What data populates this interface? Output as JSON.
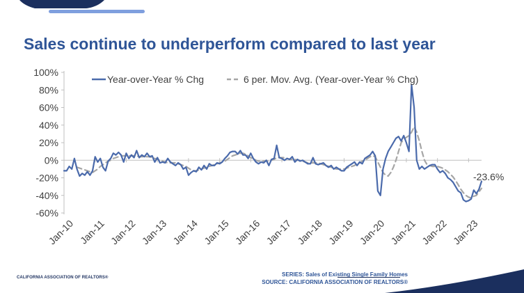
{
  "page": {
    "title": "Sales continue to underperform compared to last year",
    "org_label": "CALIFORNIA ASSOCIATION OF REALTORS®",
    "series_note": "SERIES: Sales of Existing Single Family Homes",
    "source_note": "SOURCE: CALIFORNIA ASSOCIATION OF REALTORS®"
  },
  "colors": {
    "title": "#2f5597",
    "navy": "#1b2f5e",
    "accent_bar": "#7f9fde",
    "series_yoy": "#4a6aab",
    "series_mavg": "#a6a6a6",
    "footer_text": "#2f5597"
  },
  "chart_data": {
    "type": "line",
    "title": "Sales continue to underperform compared to last year",
    "xlabel": "",
    "ylabel": "",
    "ylim": [
      -60,
      100
    ],
    "y_ticks": [
      100,
      80,
      60,
      40,
      20,
      0,
      -20,
      -40,
      -60
    ],
    "y_tick_labels": [
      "100%",
      "80%",
      "60%",
      "40%",
      "20%",
      "0%",
      "-20%",
      "-40%",
      "-60%"
    ],
    "x_tick_labels": [
      "Jan-10",
      "Jan-11",
      "Jan-12",
      "Jan-13",
      "Jan-14",
      "Jan-15",
      "Jan-16",
      "Jan-17",
      "Jan-18",
      "Jan-19",
      "Jan-20",
      "Jan-21",
      "Jan-22",
      "Jan-23"
    ],
    "grid": false,
    "legend_position": "top",
    "x_start": "Jan-10",
    "frequency": "monthly",
    "annotation": "-23.6%",
    "series": [
      {
        "name": "Year-over-Year % Chg",
        "style": "solid",
        "values": [
          -12,
          -12,
          -7,
          -10,
          2,
          -10,
          -18,
          -15,
          -17,
          -13,
          -17,
          -12,
          4,
          -2,
          2,
          -8,
          -12,
          -1,
          2,
          8,
          6,
          9,
          6,
          -2,
          8,
          2,
          6,
          3,
          11,
          3,
          6,
          4,
          8,
          4,
          5,
          -2,
          3,
          -3,
          -2,
          -3,
          2,
          -2,
          -4,
          -6,
          -3,
          -5,
          -10,
          -8,
          -17,
          -14,
          -12,
          -13,
          -8,
          -11,
          -6,
          -10,
          -4,
          -6,
          -6,
          -3,
          -4,
          -2,
          2,
          5,
          9,
          10,
          10,
          7,
          11,
          6,
          6,
          2,
          8,
          2,
          -2,
          -4,
          -2,
          -3,
          0,
          -6,
          1,
          2,
          17,
          3,
          2,
          0,
          2,
          1,
          4,
          -2,
          1,
          -1,
          0,
          -2,
          -4,
          -4,
          3,
          -4,
          -5,
          -4,
          -3,
          -6,
          -8,
          -6,
          -10,
          -8,
          -10,
          -12,
          -12,
          -8,
          -6,
          -4,
          -2,
          -6,
          -2,
          -4,
          2,
          4,
          6,
          10,
          5,
          -35,
          -40,
          -10,
          2,
          10,
          15,
          20,
          25,
          27,
          22,
          28,
          20,
          10,
          86,
          60,
          0,
          -10,
          -7,
          -10,
          -8,
          -6,
          -5,
          -5,
          -10,
          -14,
          -12,
          -15,
          -20,
          -22,
          -25,
          -30,
          -35,
          -37,
          -45,
          -47,
          -46,
          -44,
          -34,
          -38,
          -33,
          -24
        ]
      },
      {
        "name": "6 per. Mov. Avg. (Year-over-Year % Chg)",
        "style": "dashed",
        "values": [
          null,
          null,
          null,
          null,
          null,
          -8,
          -9,
          -10,
          -11,
          -12,
          -13,
          -14,
          -12,
          -10,
          -7,
          -5,
          -3,
          -1,
          0,
          2,
          3,
          4,
          5,
          5,
          5,
          5,
          5,
          5,
          5,
          4,
          4,
          4,
          4,
          4,
          3,
          2,
          1,
          0,
          -1,
          -2,
          -3,
          -3,
          -3,
          -3,
          -4,
          -5,
          -6,
          -7,
          -9,
          -11,
          -12,
          -12,
          -11,
          -10,
          -9,
          -8,
          -7,
          -6,
          -5,
          -4,
          -3,
          -2,
          -1,
          1,
          3,
          5,
          6,
          7,
          8,
          8,
          7,
          5,
          3,
          2,
          0,
          -1,
          -1,
          -1,
          -1,
          -1,
          0,
          1,
          3,
          3,
          3,
          3,
          2,
          1,
          1,
          1,
          0,
          0,
          -1,
          -2,
          -3,
          -3,
          -3,
          -3,
          -3,
          -4,
          -5,
          -6,
          -7,
          -8,
          -9,
          -10,
          -10,
          -10,
          -10,
          -9,
          -8,
          -7,
          -6,
          -4,
          -3,
          -1,
          0,
          2,
          4,
          5,
          4,
          -2,
          -8,
          -14,
          -17,
          -18,
          -14,
          -8,
          0,
          10,
          20,
          24,
          26,
          28,
          32,
          38,
          32,
          22,
          10,
          0,
          -5,
          -6,
          -7,
          -7,
          -7,
          -8,
          -9,
          -11,
          -13,
          -16,
          -19,
          -23,
          -28,
          -33,
          -37,
          -40,
          -42,
          -43,
          -41,
          -40,
          -36,
          -32
        ]
      }
    ]
  }
}
